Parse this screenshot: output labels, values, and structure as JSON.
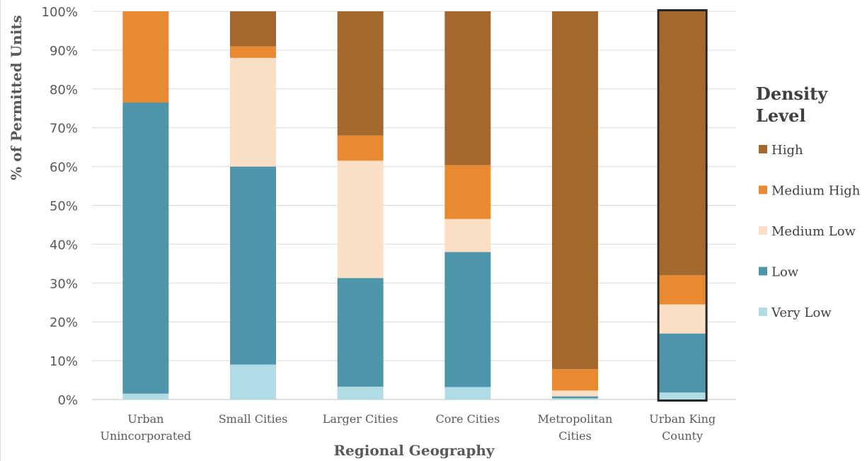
{
  "chart_data": {
    "type": "bar",
    "stacked": true,
    "percent": true,
    "title": "",
    "xlabel": "Regional Geography",
    "ylabel": "% of Permitted Units",
    "ylim": [
      0,
      100
    ],
    "yticks": [
      "0%",
      "10%",
      "20%",
      "30%",
      "40%",
      "50%",
      "60%",
      "70%",
      "80%",
      "90%",
      "100%"
    ],
    "categories": [
      [
        "Urban",
        "Unincorporated"
      ],
      [
        "Small Cities"
      ],
      [
        "Larger Cities"
      ],
      [
        "Core Cities"
      ],
      [
        "Metropolitan",
        "Cities"
      ],
      [
        "Urban King",
        "County"
      ]
    ],
    "highlighted_category_index": 5,
    "grid": true,
    "legend_title": [
      "Density",
      "Level"
    ],
    "legend_position": "right",
    "series": [
      {
        "name": "Very Low",
        "color": "#b0dce6",
        "values": [
          1.5,
          9,
          3.3,
          3.2,
          0.3,
          1.8
        ]
      },
      {
        "name": "Low",
        "color": "#4e95a9",
        "values": [
          75,
          51,
          28,
          34.8,
          0.5,
          15.2
        ]
      },
      {
        "name": "Medium Low",
        "color": "#fadfc5",
        "values": [
          0,
          28,
          30.2,
          8.5,
          1.5,
          7.5
        ]
      },
      {
        "name": "Medium High",
        "color": "#e78a31",
        "values": [
          23.5,
          3,
          6.5,
          13.9,
          5.5,
          7.5
        ]
      },
      {
        "name": "High",
        "color": "#a4672d",
        "values": [
          0,
          9,
          32,
          39.6,
          92.2,
          68
        ]
      }
    ]
  }
}
